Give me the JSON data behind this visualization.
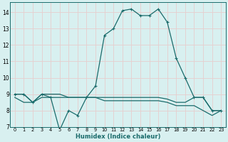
{
  "xlabel": "Humidex (Indice chaleur)",
  "background_color": "#d8f0f0",
  "grid_color": "#c8e8e8",
  "line_color": "#1a6b6b",
  "xlim": [
    -0.5,
    23.5
  ],
  "ylim": [
    7.0,
    14.6
  ],
  "yticks": [
    7,
    8,
    9,
    10,
    11,
    12,
    13,
    14
  ],
  "xticks": [
    0,
    1,
    2,
    3,
    4,
    5,
    6,
    7,
    8,
    9,
    10,
    11,
    12,
    13,
    14,
    15,
    16,
    17,
    18,
    19,
    20,
    21,
    22,
    23
  ],
  "series1_x": [
    0,
    1,
    2,
    3,
    4,
    5,
    6,
    7,
    8,
    9,
    10,
    11,
    12,
    13,
    14,
    15,
    16,
    17,
    18,
    19,
    20,
    21,
    22,
    23
  ],
  "series1_y": [
    9.0,
    9.0,
    8.5,
    9.0,
    8.8,
    6.8,
    8.0,
    7.7,
    8.8,
    9.5,
    12.6,
    13.0,
    14.1,
    14.2,
    13.8,
    13.8,
    14.2,
    13.4,
    11.2,
    10.0,
    8.8,
    8.8,
    8.0,
    8.0
  ],
  "series2_x": [
    0,
    1,
    2,
    3,
    4,
    5,
    6,
    7,
    8,
    9,
    10,
    11,
    12,
    13,
    14,
    15,
    16,
    17,
    18,
    19,
    20,
    21,
    22,
    23
  ],
  "series2_y": [
    9.0,
    9.0,
    8.5,
    9.0,
    9.0,
    9.0,
    8.8,
    8.8,
    8.8,
    8.8,
    8.8,
    8.8,
    8.8,
    8.8,
    8.8,
    8.8,
    8.8,
    8.7,
    8.5,
    8.5,
    8.8,
    8.8,
    8.0,
    8.0
  ],
  "series3_x": [
    0,
    1,
    2,
    3,
    4,
    5,
    6,
    7,
    8,
    9,
    10,
    11,
    12,
    13,
    14,
    15,
    16,
    17,
    18,
    19,
    20,
    21,
    22,
    23
  ],
  "series3_y": [
    8.8,
    8.5,
    8.5,
    8.8,
    8.8,
    8.8,
    8.8,
    8.8,
    8.8,
    8.8,
    8.6,
    8.6,
    8.6,
    8.6,
    8.6,
    8.6,
    8.6,
    8.5,
    8.3,
    8.3,
    8.3,
    8.0,
    7.7,
    8.0
  ]
}
